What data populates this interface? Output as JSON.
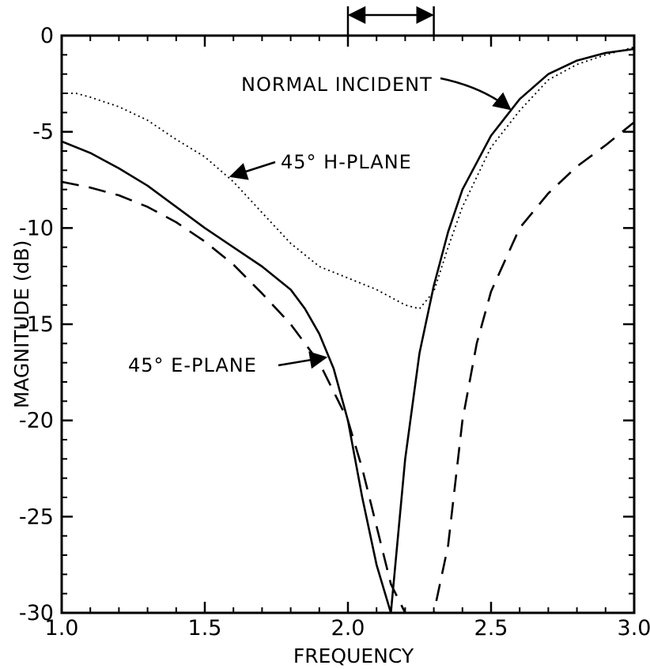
{
  "chart_data": {
    "type": "line",
    "title": "",
    "xlabel": "FREQUENCY",
    "ylabel": "MAGNITUDE (dB)",
    "xlim": [
      1.0,
      3.0
    ],
    "ylim": [
      -30,
      0
    ],
    "x_ticks": [
      1.0,
      1.5,
      2.0,
      2.5,
      3.0
    ],
    "x_tick_labels": [
      "1.0",
      "1.5",
      "2.0",
      "2.5",
      "3.0"
    ],
    "y_ticks": [
      0,
      -5,
      -10,
      -15,
      -20,
      -25,
      -30
    ],
    "y_tick_labels": [
      "0",
      "-5",
      "-10",
      "-15",
      "-20",
      "-25",
      "-30"
    ],
    "grid": false,
    "legend": "none",
    "band_marker": {
      "x_start": 2.0,
      "x_end": 2.3
    },
    "series": [
      {
        "name": "NORMAL INCIDENT",
        "style": "solid",
        "color": "#000000",
        "x": [
          1.0,
          1.1,
          1.2,
          1.3,
          1.4,
          1.5,
          1.6,
          1.7,
          1.8,
          1.85,
          1.9,
          1.95,
          2.0,
          2.05,
          2.1,
          2.15,
          2.2,
          2.25,
          2.3,
          2.35,
          2.4,
          2.5,
          2.6,
          2.7,
          2.8,
          2.9,
          3.0
        ],
        "y": [
          -5.5,
          -6.1,
          -6.9,
          -7.8,
          -8.9,
          -10.0,
          -11.0,
          -12.0,
          -13.2,
          -14.2,
          -15.5,
          -17.3,
          -20.0,
          -24.0,
          -27.5,
          -30.0,
          -22.0,
          -16.5,
          -13.0,
          -10.2,
          -8.0,
          -5.2,
          -3.3,
          -2.0,
          -1.3,
          -0.9,
          -0.7
        ]
      },
      {
        "name": "45° H-PLANE",
        "style": "dotted",
        "color": "#000000",
        "x": [
          1.0,
          1.05,
          1.1,
          1.2,
          1.3,
          1.4,
          1.5,
          1.6,
          1.7,
          1.8,
          1.9,
          2.0,
          2.1,
          2.2,
          2.25,
          2.3,
          2.35,
          2.4,
          2.5,
          2.6,
          2.7,
          2.8,
          2.9,
          3.0
        ],
        "y": [
          -3.0,
          -3.0,
          -3.2,
          -3.7,
          -4.4,
          -5.4,
          -6.3,
          -7.6,
          -9.2,
          -10.8,
          -12.0,
          -12.6,
          -13.2,
          -14.0,
          -14.2,
          -13.3,
          -11.0,
          -8.9,
          -5.8,
          -3.9,
          -2.3,
          -1.5,
          -1.0,
          -0.6
        ]
      },
      {
        "name": "45° E-PLANE",
        "style": "dashed",
        "color": "#000000",
        "x": [
          1.0,
          1.1,
          1.2,
          1.3,
          1.4,
          1.5,
          1.6,
          1.7,
          1.8,
          1.9,
          1.95,
          2.0,
          2.05,
          2.1,
          2.15,
          2.2,
          2.25,
          2.3,
          2.35,
          2.4,
          2.45,
          2.5,
          2.6,
          2.7,
          2.8,
          2.9,
          3.0
        ],
        "y": [
          -7.6,
          -7.9,
          -8.3,
          -8.9,
          -9.7,
          -10.7,
          -11.9,
          -13.4,
          -15.0,
          -17.0,
          -18.5,
          -20.0,
          -22.5,
          -25.5,
          -28.5,
          -30.0,
          -30.5,
          -30.0,
          -26.5,
          -20.0,
          -16.0,
          -13.3,
          -10.0,
          -8.2,
          -6.8,
          -5.7,
          -4.5
        ]
      }
    ],
    "annotations": [
      {
        "text": "NORMAL INCIDENT",
        "arrow_to": [
          2.57,
          -3.8
        ]
      },
      {
        "text": "45° H-PLANE",
        "arrow_to": [
          1.6,
          -7.4
        ]
      },
      {
        "text": "45° E-PLANE",
        "arrow_to": [
          1.9,
          -16.8
        ]
      }
    ]
  }
}
